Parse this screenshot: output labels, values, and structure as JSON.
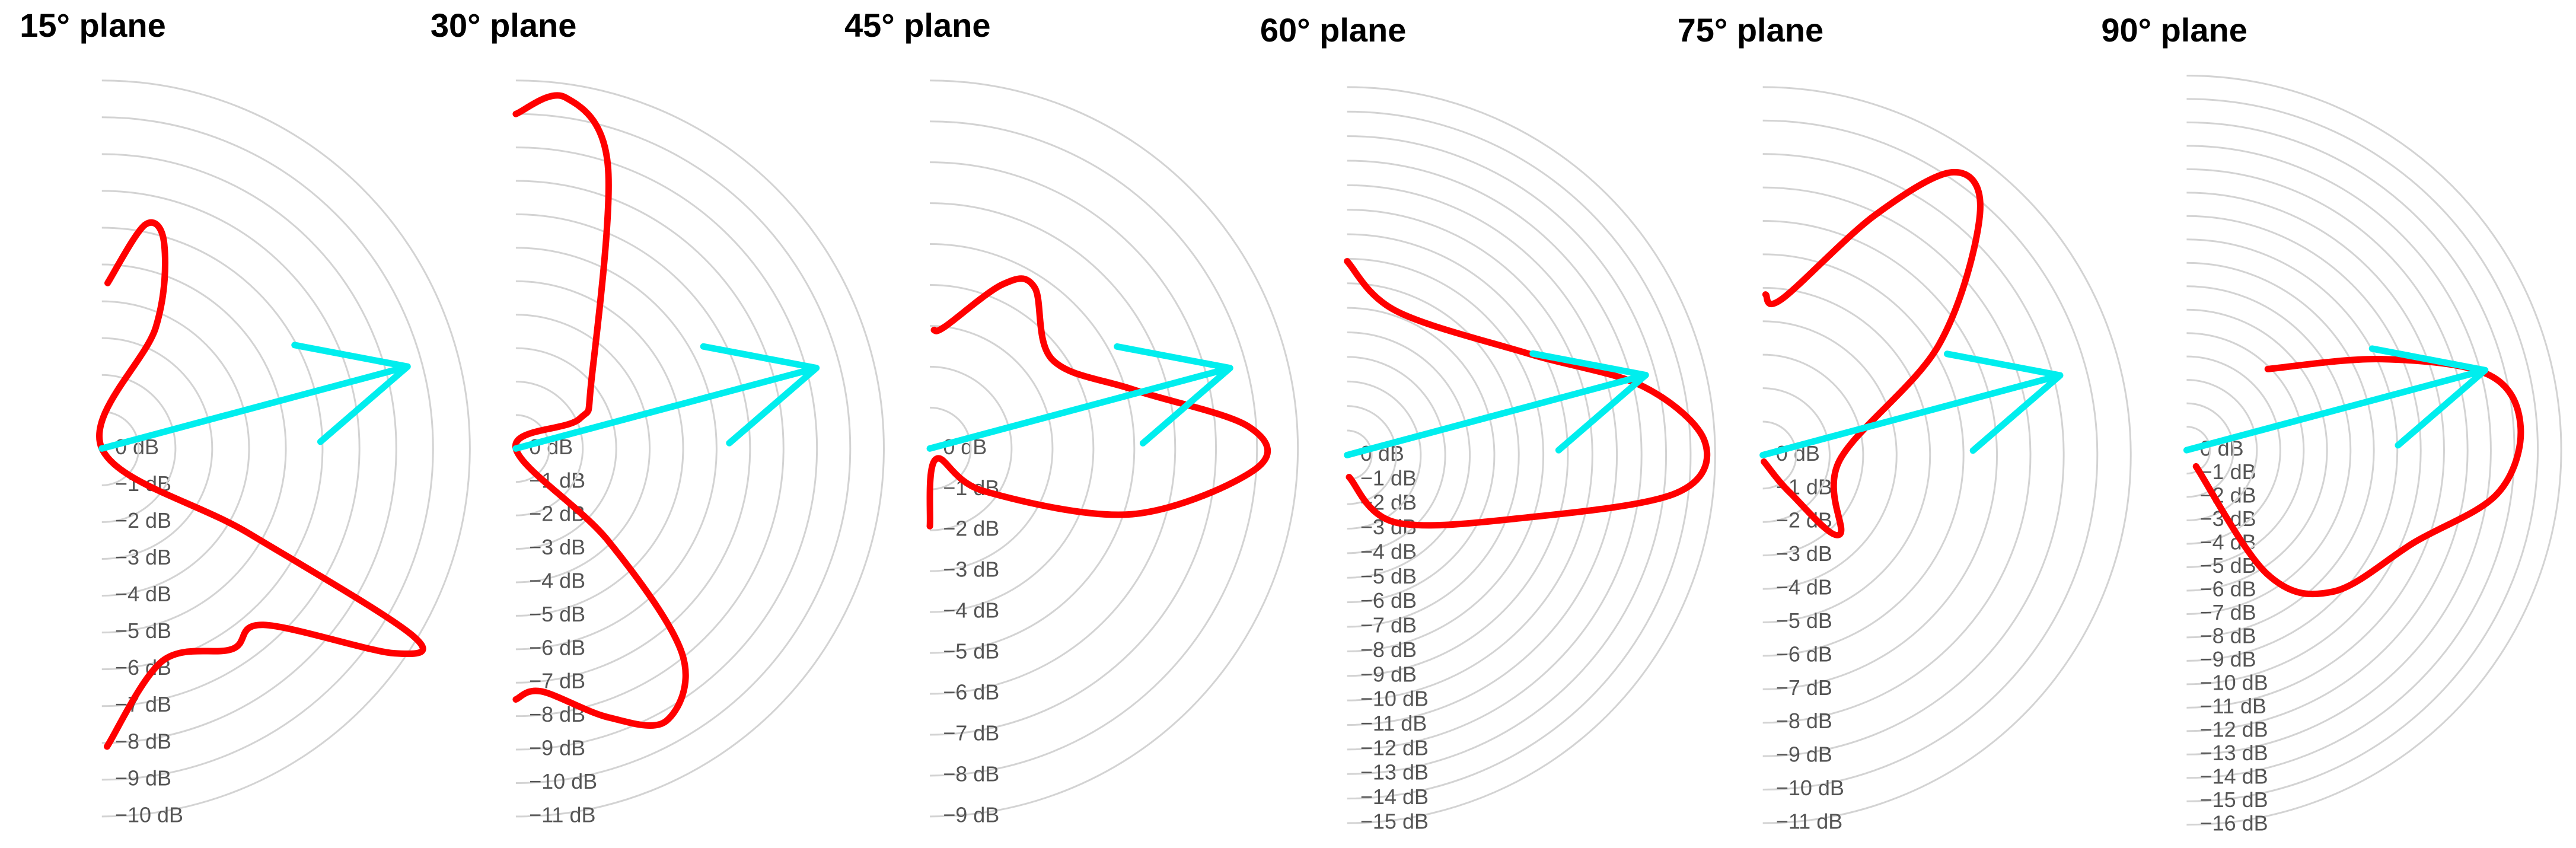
{
  "chart_data": [
    {
      "type": "polar",
      "title": "15° plane",
      "rlim": [
        0,
        -10
      ],
      "rticks": [
        {
          "value": 0,
          "label": "0 dB"
        },
        {
          "value": -1,
          "label": "−1 dB"
        },
        {
          "value": -2,
          "label": "−2 dB"
        },
        {
          "value": -3,
          "label": "−3 dB"
        },
        {
          "value": -4,
          "label": "−4 dB"
        },
        {
          "value": -5,
          "label": "−5 dB"
        },
        {
          "value": -6,
          "label": "−6 dB"
        },
        {
          "value": -7,
          "label": "−7 dB"
        },
        {
          "value": -8,
          "label": "−8 dB"
        },
        {
          "value": -9,
          "label": "−9 dB"
        },
        {
          "value": -10,
          "label": "−10 dB"
        }
      ],
      "series": [
        {
          "color": "#ff0000",
          "theta": [
            88,
            79,
            73,
            66,
            0,
            -30,
            -31,
            -35,
            -47.5,
            -57,
            -74,
            -89
          ],
          "r": [
            -4.5,
            -6.2,
            -5.8,
            -3.6,
            0,
            -4.6,
            -9.8,
            -9.7,
            -6.5,
            -6.5,
            -6.0,
            -8.1
          ]
        }
      ],
      "arrow": {
        "color": "#00eeee",
        "theta": 15,
        "r": -8.6
      }
    },
    {
      "type": "polar",
      "title": "30° plane",
      "rlim": [
        0,
        -11
      ],
      "rticks": [
        {
          "value": 0,
          "label": "0 dB"
        },
        {
          "value": -1,
          "label": "−1 dB"
        },
        {
          "value": -2,
          "label": "−2 dB"
        },
        {
          "value": -3,
          "label": "−3 dB"
        },
        {
          "value": -4,
          "label": "−4 dB"
        },
        {
          "value": -5,
          "label": "−5 dB"
        },
        {
          "value": -6,
          "label": "−6 dB"
        },
        {
          "value": -7,
          "label": "−7 dB"
        },
        {
          "value": -8,
          "label": "−8 dB"
        },
        {
          "value": -9,
          "label": "−9 dB"
        },
        {
          "value": -10,
          "label": "−10 dB"
        },
        {
          "value": -11,
          "label": "−11 dB"
        }
      ],
      "series": [
        {
          "color": "#ff0000",
          "theta": [
            90,
            82,
            72,
            43,
            25,
            0,
            -45,
            -51,
            -61,
            -71,
            -84,
            -90
          ],
          "r": [
            -10.0,
            -10.6,
            -8.9,
            -3.1,
            -2.1,
            0,
            -3.9,
            -7.9,
            -9.3,
            -8.5,
            -7.3,
            -7.5
          ]
        }
      ],
      "arrow": {
        "color": "#00eeee",
        "theta": 15,
        "r": -9.3
      }
    },
    {
      "type": "polar",
      "title": "45° plane",
      "rlim": [
        0,
        -9
      ],
      "rticks": [
        {
          "value": 0,
          "label": "0 dB"
        },
        {
          "value": -1,
          "label": "−1 dB"
        },
        {
          "value": -2,
          "label": "−2 dB"
        },
        {
          "value": -3,
          "label": "−3 dB"
        },
        {
          "value": -4,
          "label": "−4 dB"
        },
        {
          "value": -5,
          "label": "−5 dB"
        },
        {
          "value": -6,
          "label": "−6 dB"
        },
        {
          "value": -7,
          "label": "−7 dB"
        },
        {
          "value": -8,
          "label": "−8 dB"
        },
        {
          "value": -9,
          "label": "−9 dB"
        }
      ],
      "series": [
        {
          "color": "#ff0000",
          "theta": [
            88,
            83,
            66,
            57,
            36,
            16,
            4,
            -3.5,
            -18,
            -38,
            -60,
            -90
          ],
          "r": [
            -2.9,
            -3.0,
            -4.4,
            -4.7,
            -3.7,
            -5.2,
            -7.8,
            -8.0,
            -5.2,
            -1.7,
            -0.3,
            -1.9
          ]
        }
      ],
      "arrow": {
        "color": "#00eeee",
        "theta": 15,
        "r": -7.6
      }
    },
    {
      "type": "polar",
      "title": "60° plane",
      "rlim": [
        0,
        -15
      ],
      "rticks": [
        {
          "value": 0,
          "label": "0 dB"
        },
        {
          "value": -1,
          "label": "−1 dB"
        },
        {
          "value": -2,
          "label": "−2 dB"
        },
        {
          "value": -3,
          "label": "−3 dB"
        },
        {
          "value": -4,
          "label": "−4 dB"
        },
        {
          "value": -5,
          "label": "−5 dB"
        },
        {
          "value": -6,
          "label": "−6 dB"
        },
        {
          "value": -7,
          "label": "−7 dB"
        },
        {
          "value": -8,
          "label": "−8 dB"
        },
        {
          "value": -9,
          "label": "−9 dB"
        },
        {
          "value": -10,
          "label": "−10 dB"
        },
        {
          "value": -11,
          "label": "−11 dB"
        },
        {
          "value": -12,
          "label": "−12 dB"
        },
        {
          "value": -13,
          "label": "−13 dB"
        },
        {
          "value": -14,
          "label": "−14 dB"
        },
        {
          "value": -15,
          "label": "−15 dB"
        }
      ],
      "series": [
        {
          "color": "#ff0000",
          "theta": [
            90,
            71,
            29,
            13,
            2,
            -6.6,
            -19,
            -54,
            -85
          ],
          "r": [
            -7.9,
            -6.2,
            -8.5,
            -12.4,
            -14.6,
            -13.5,
            -7.8,
            -3.4,
            -0.9
          ]
        }
      ],
      "arrow": {
        "color": "#00eeee",
        "theta": 15,
        "r": -12.6
      }
    },
    {
      "type": "polar",
      "title": "75° plane",
      "rlim": [
        0,
        -11
      ],
      "rticks": [
        {
          "value": 0,
          "label": "0 dB"
        },
        {
          "value": -1,
          "label": "−1 dB"
        },
        {
          "value": -2,
          "label": "−2 dB"
        },
        {
          "value": -3,
          "label": "−3 dB"
        },
        {
          "value": -4,
          "label": "−4 dB"
        },
        {
          "value": -5,
          "label": "−5 dB"
        },
        {
          "value": -6,
          "label": "−6 dB"
        },
        {
          "value": -7,
          "label": "−7 dB"
        },
        {
          "value": -8,
          "label": "−8 dB"
        },
        {
          "value": -9,
          "label": "−9 dB"
        },
        {
          "value": -10,
          "label": "−10 dB"
        },
        {
          "value": -11,
          "label": "−11 dB"
        }
      ],
      "series": [
        {
          "color": "#ff0000",
          "theta": [
            89,
            83,
            65,
            56,
            48,
            32,
            -4,
            -46,
            -54,
            -80
          ],
          "r": [
            -4.8,
            -4.7,
            -7.9,
            -10.2,
            -9.7,
            -6.2,
            -2.3,
            -3.3,
            -1.4,
            -0.2
          ]
        }
      ],
      "arrow": {
        "color": "#00eeee",
        "theta": 15,
        "r": -9.2
      }
    },
    {
      "type": "polar",
      "title": "90° plane",
      "rlim": [
        0,
        -16
      ],
      "rticks": [
        {
          "value": 0,
          "label": "0 dB"
        },
        {
          "value": -1,
          "label": "−1 dB"
        },
        {
          "value": -2,
          "label": "−2 dB"
        },
        {
          "value": -3,
          "label": "−3 dB"
        },
        {
          "value": -4,
          "label": "−4 dB"
        },
        {
          "value": -5,
          "label": "−5 dB"
        },
        {
          "value": -6,
          "label": "−6 dB"
        },
        {
          "value": -7,
          "label": "−7 dB"
        },
        {
          "value": -8,
          "label": "−8 dB"
        },
        {
          "value": -9,
          "label": "−9 dB"
        },
        {
          "value": -10,
          "label": "−10 dB"
        },
        {
          "value": -11,
          "label": "−11 dB"
        },
        {
          "value": -12,
          "label": "−12 dB"
        },
        {
          "value": -13,
          "label": "−13 dB"
        },
        {
          "value": -14,
          "label": "−14 dB"
        },
        {
          "value": -15,
          "label": "−15 dB"
        },
        {
          "value": -16,
          "label": "−16 dB"
        }
      ],
      "series": [
        {
          "color": "#ff0000",
          "theta": [
            45,
            25,
            14,
            4,
            -8,
            -22,
            -44,
            -57,
            -60
          ],
          "r": [
            -4.9,
            -9.2,
            -13.3,
            -14.3,
            -13.4,
            -10.5,
            -8.7,
            -6.3,
            -0.8
          ]
        }
      ],
      "arrow": {
        "color": "#00eeee",
        "theta": 15,
        "r": -13.2
      }
    }
  ]
}
